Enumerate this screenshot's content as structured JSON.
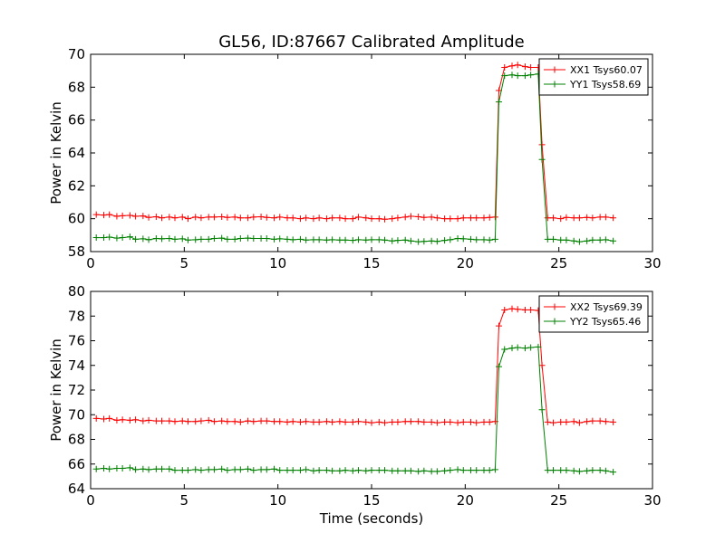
{
  "figure": {
    "title": "GL56, ID:87667 Calibrated Amplitude",
    "xlabel": "Time (seconds)"
  },
  "chart_data": [
    {
      "type": "line",
      "title": "GL56, ID:87667 Calibrated Amplitude",
      "xlabel": "",
      "ylabel": "Power in Kelvin",
      "xlim": [
        0,
        30
      ],
      "ylim": [
        58,
        70
      ],
      "xticks": [
        0,
        5,
        10,
        15,
        20,
        25,
        30
      ],
      "yticks": [
        58,
        60,
        62,
        64,
        66,
        68,
        70
      ],
      "legend": "top-right",
      "grid": false,
      "x": [
        0.3,
        0.7,
        1.0,
        1.4,
        1.7,
        2.1,
        2.4,
        2.8,
        3.1,
        3.5,
        3.8,
        4.2,
        4.5,
        4.9,
        5.2,
        5.6,
        5.9,
        6.3,
        6.6,
        7.0,
        7.3,
        7.7,
        8.0,
        8.4,
        8.7,
        9.1,
        9.4,
        9.8,
        10.1,
        10.5,
        10.8,
        11.2,
        11.5,
        11.9,
        12.2,
        12.6,
        12.9,
        13.3,
        13.6,
        14.0,
        14.3,
        14.7,
        15.0,
        15.4,
        15.7,
        16.1,
        16.4,
        16.8,
        17.1,
        17.5,
        17.8,
        18.2,
        18.5,
        18.9,
        19.2,
        19.6,
        19.9,
        20.3,
        20.6,
        21.0,
        21.3,
        21.6,
        21.8,
        22.1,
        22.5,
        22.8,
        23.2,
        23.5,
        23.9,
        24.1,
        24.4,
        24.7,
        25.1,
        25.4,
        25.8,
        26.1,
        26.5,
        26.8,
        27.2,
        27.5,
        27.9
      ],
      "series": [
        {
          "name": "XX1 Tsys60.07",
          "color": "#ff0000",
          "values": [
            60.25,
            60.22,
            60.25,
            60.15,
            60.18,
            60.2,
            60.15,
            60.17,
            60.08,
            60.12,
            60.05,
            60.1,
            60.05,
            60.1,
            60.0,
            60.1,
            60.05,
            60.1,
            60.1,
            60.12,
            60.08,
            60.1,
            60.05,
            60.05,
            60.1,
            60.12,
            60.08,
            60.05,
            60.1,
            60.05,
            60.05,
            60.0,
            60.05,
            60.0,
            60.05,
            60.0,
            60.05,
            60.05,
            60.0,
            60.0,
            60.1,
            60.05,
            60.0,
            60.0,
            59.97,
            60.0,
            60.05,
            60.1,
            60.15,
            60.12,
            60.08,
            60.1,
            60.05,
            60.0,
            60.0,
            60.0,
            60.05,
            60.05,
            60.05,
            60.05,
            60.08,
            60.1,
            67.8,
            69.2,
            69.3,
            69.35,
            69.25,
            69.2,
            69.2,
            64.5,
            60.05,
            60.05,
            60.0,
            60.08,
            60.05,
            60.05,
            60.08,
            60.05,
            60.1,
            60.1,
            60.05
          ]
        },
        {
          "name": "YY1 Tsys58.69",
          "color": "#008000",
          "values": [
            58.85,
            58.85,
            58.88,
            58.82,
            58.85,
            58.9,
            58.75,
            58.78,
            58.72,
            58.8,
            58.78,
            58.8,
            58.75,
            58.78,
            58.7,
            58.72,
            58.75,
            58.75,
            58.8,
            58.82,
            58.75,
            58.75,
            58.8,
            58.82,
            58.8,
            58.8,
            58.8,
            58.75,
            58.78,
            58.75,
            58.72,
            58.75,
            58.7,
            58.72,
            58.72,
            58.7,
            58.72,
            58.7,
            58.7,
            58.68,
            58.72,
            58.7,
            58.72,
            58.72,
            58.7,
            58.65,
            58.68,
            58.7,
            58.65,
            58.6,
            58.62,
            58.65,
            58.62,
            58.68,
            58.72,
            58.8,
            58.78,
            58.75,
            58.72,
            58.72,
            58.7,
            58.75,
            67.1,
            68.7,
            68.75,
            68.7,
            68.7,
            68.75,
            68.8,
            63.6,
            58.75,
            58.75,
            58.7,
            58.7,
            58.65,
            58.6,
            58.65,
            58.7,
            58.7,
            58.72,
            58.65
          ]
        }
      ]
    },
    {
      "type": "line",
      "title": "",
      "xlabel": "Time (seconds)",
      "ylabel": "Power in Kelvin",
      "xlim": [
        0,
        30
      ],
      "ylim": [
        64,
        80
      ],
      "xticks": [
        0,
        5,
        10,
        15,
        20,
        25,
        30
      ],
      "yticks": [
        64,
        66,
        68,
        70,
        72,
        74,
        76,
        78,
        80
      ],
      "legend": "top-right",
      "grid": false,
      "x": [
        0.3,
        0.7,
        1.0,
        1.4,
        1.7,
        2.1,
        2.4,
        2.8,
        3.1,
        3.5,
        3.8,
        4.2,
        4.5,
        4.9,
        5.2,
        5.6,
        5.9,
        6.3,
        6.6,
        7.0,
        7.3,
        7.7,
        8.0,
        8.4,
        8.7,
        9.1,
        9.4,
        9.8,
        10.1,
        10.5,
        10.8,
        11.2,
        11.5,
        11.9,
        12.2,
        12.6,
        12.9,
        13.3,
        13.6,
        14.0,
        14.3,
        14.7,
        15.0,
        15.4,
        15.7,
        16.1,
        16.4,
        16.8,
        17.1,
        17.5,
        17.8,
        18.2,
        18.5,
        18.9,
        19.2,
        19.6,
        19.9,
        20.3,
        20.6,
        21.0,
        21.3,
        21.6,
        21.8,
        22.1,
        22.5,
        22.8,
        23.2,
        23.5,
        23.9,
        24.1,
        24.4,
        24.7,
        25.1,
        25.4,
        25.8,
        26.1,
        26.5,
        26.8,
        27.2,
        27.5,
        27.9
      ],
      "series": [
        {
          "name": "XX2 Tsys69.39",
          "color": "#ff0000",
          "values": [
            69.7,
            69.65,
            69.7,
            69.55,
            69.6,
            69.55,
            69.6,
            69.5,
            69.55,
            69.5,
            69.5,
            69.5,
            69.45,
            69.5,
            69.45,
            69.45,
            69.5,
            69.55,
            69.45,
            69.5,
            69.45,
            69.45,
            69.4,
            69.5,
            69.45,
            69.5,
            69.5,
            69.45,
            69.45,
            69.4,
            69.45,
            69.4,
            69.45,
            69.4,
            69.4,
            69.45,
            69.4,
            69.45,
            69.4,
            69.4,
            69.45,
            69.4,
            69.35,
            69.4,
            69.35,
            69.4,
            69.4,
            69.45,
            69.45,
            69.45,
            69.4,
            69.4,
            69.35,
            69.4,
            69.4,
            69.35,
            69.4,
            69.4,
            69.35,
            69.4,
            69.4,
            69.45,
            77.2,
            78.5,
            78.6,
            78.55,
            78.5,
            78.5,
            78.45,
            74.0,
            69.4,
            69.35,
            69.4,
            69.4,
            69.45,
            69.35,
            69.45,
            69.5,
            69.5,
            69.45,
            69.4
          ]
        },
        {
          "name": "YY2 Tsys65.46",
          "color": "#008000",
          "values": [
            65.6,
            65.65,
            65.6,
            65.65,
            65.65,
            65.7,
            65.55,
            65.6,
            65.55,
            65.6,
            65.6,
            65.6,
            65.5,
            65.5,
            65.5,
            65.55,
            65.5,
            65.55,
            65.55,
            65.6,
            65.5,
            65.55,
            65.55,
            65.6,
            65.5,
            65.55,
            65.55,
            65.6,
            65.5,
            65.5,
            65.5,
            65.5,
            65.55,
            65.45,
            65.5,
            65.5,
            65.45,
            65.45,
            65.5,
            65.45,
            65.5,
            65.45,
            65.5,
            65.5,
            65.5,
            65.45,
            65.45,
            65.45,
            65.45,
            65.4,
            65.45,
            65.4,
            65.4,
            65.45,
            65.5,
            65.55,
            65.5,
            65.5,
            65.5,
            65.5,
            65.5,
            65.55,
            73.9,
            75.3,
            75.4,
            75.45,
            75.4,
            75.45,
            75.5,
            70.4,
            65.5,
            65.5,
            65.5,
            65.5,
            65.45,
            65.4,
            65.45,
            65.5,
            65.5,
            65.45,
            65.35
          ]
        }
      ]
    }
  ]
}
